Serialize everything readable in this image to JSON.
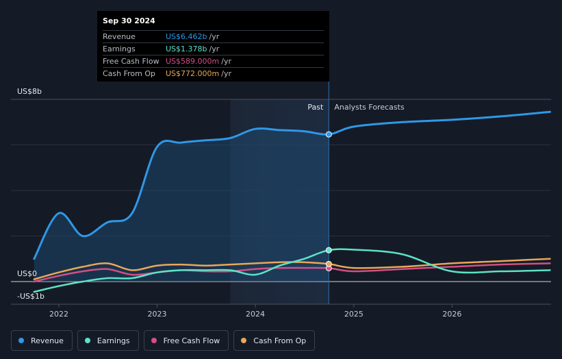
{
  "chart_data": {
    "type": "line",
    "x": [
      "2021-10-01",
      "2021-12-31",
      "2022-03-31",
      "2022-06-30",
      "2022-09-30",
      "2022-12-31",
      "2023-03-31",
      "2023-06-30",
      "2023-09-30",
      "2023-12-31",
      "2024-03-31",
      "2024-06-30",
      "2024-09-30",
      "2024-12-31",
      "2025-06-30",
      "2025-12-31",
      "2026-06-30",
      "2026-12-31"
    ],
    "series": [
      {
        "name": "Revenue",
        "color": "#2f98e8",
        "values": [
          1.0,
          3.0,
          2.0,
          2.6,
          3.0,
          5.9,
          6.1,
          6.2,
          6.3,
          6.7,
          6.65,
          6.6,
          6.462,
          6.8,
          7.0,
          7.1,
          7.25,
          7.45
        ]
      },
      {
        "name": "Earnings",
        "color": "#5ce3c8",
        "values": [
          -0.45,
          -0.2,
          0.0,
          0.15,
          0.15,
          0.4,
          0.5,
          0.5,
          0.5,
          0.3,
          0.7,
          1.0,
          1.378,
          1.4,
          1.2,
          0.45,
          0.45,
          0.5
        ]
      },
      {
        "name": "Free Cash Flow",
        "color": "#d34f86",
        "values": [
          0.0,
          0.25,
          0.45,
          0.55,
          0.3,
          0.4,
          0.5,
          0.45,
          0.45,
          0.55,
          0.6,
          0.6,
          0.589,
          0.45,
          0.55,
          0.65,
          0.75,
          0.8
        ]
      },
      {
        "name": "Cash From Op",
        "color": "#e8a857",
        "values": [
          0.1,
          0.4,
          0.65,
          0.8,
          0.5,
          0.7,
          0.75,
          0.7,
          0.75,
          0.8,
          0.85,
          0.85,
          0.772,
          0.6,
          0.65,
          0.8,
          0.9,
          1.0
        ]
      }
    ],
    "highlight_x": "2024-09-30",
    "past_start": "2023-09-30",
    "ylim": [
      -1,
      8
    ],
    "x_ticks": [
      "2022",
      "2023",
      "2024",
      "2025",
      "2026"
    ],
    "y_ticks": [
      "US$8b",
      "US$0",
      "-US$1b"
    ],
    "past_label": "Past",
    "forecast_label": "Analysts Forecasts",
    "grid": true
  },
  "tooltip": {
    "date": "Sep 30 2024",
    "rows": [
      {
        "name": "Revenue",
        "value": "US$6.462b",
        "unit": "/yr",
        "color": "#2f98e8"
      },
      {
        "name": "Earnings",
        "value": "US$1.378b",
        "unit": "/yr",
        "color": "#5ce3c8"
      },
      {
        "name": "Free Cash Flow",
        "value": "US$589.000m",
        "unit": "/yr",
        "color": "#d34f86"
      },
      {
        "name": "Cash From Op",
        "value": "US$772.000m",
        "unit": "/yr",
        "color": "#e8a857"
      }
    ]
  },
  "legend": [
    {
      "label": "Revenue",
      "color": "#2f98e8"
    },
    {
      "label": "Earnings",
      "color": "#5ce3c8"
    },
    {
      "label": "Free Cash Flow",
      "color": "#d34f86"
    },
    {
      "label": "Cash From Op",
      "color": "#e8a857"
    }
  ]
}
